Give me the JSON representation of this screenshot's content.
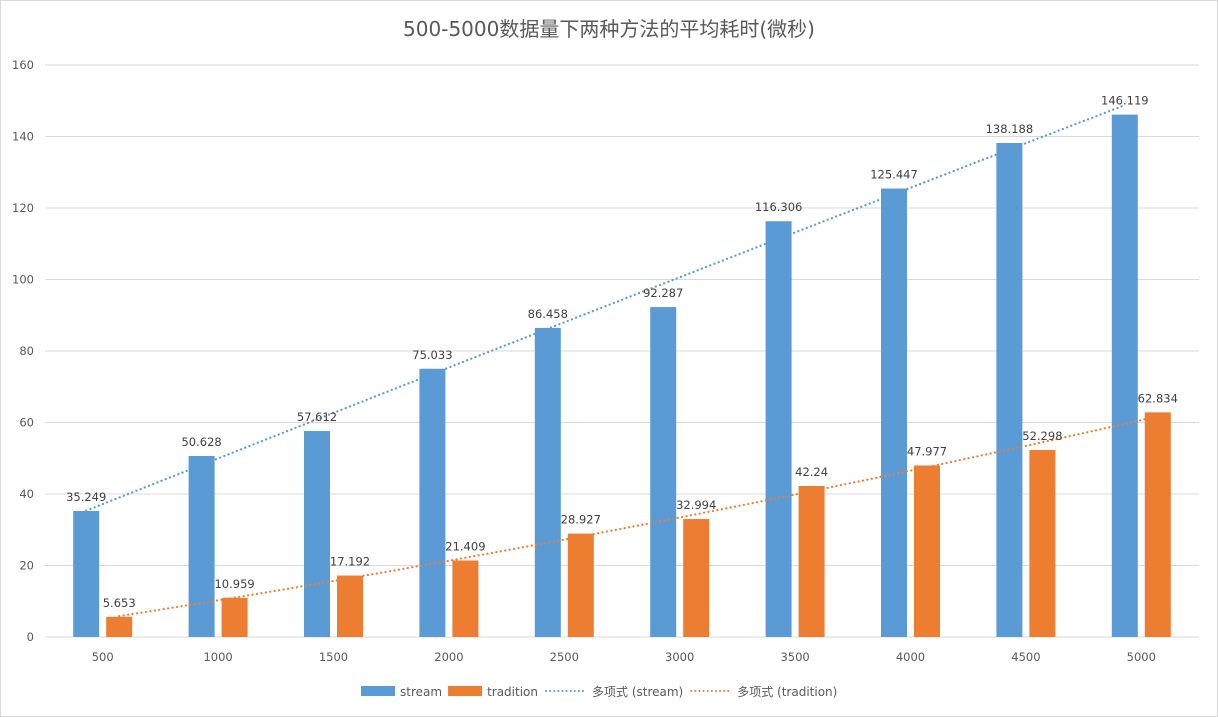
{
  "chart_data": {
    "type": "bar",
    "title": "500-5000数据量下两种方法的平均耗时(微秒)",
    "xlabel": "",
    "ylabel": "",
    "categories": [
      "500",
      "1000",
      "1500",
      "2000",
      "2500",
      "3000",
      "3500",
      "4000",
      "4500",
      "5000"
    ],
    "series": [
      {
        "name": "stream",
        "color": "#5B9BD5",
        "values": [
          35.249,
          50.628,
          57.612,
          75.033,
          86.458,
          92.287,
          116.306,
          125.447,
          138.188,
          146.119
        ],
        "labels": [
          "35.249",
          "50.628",
          "57.612",
          "75.033",
          "86.458",
          "92.287",
          "116.306",
          "125.447",
          "138.188",
          "146.119"
        ]
      },
      {
        "name": "tradition",
        "color": "#ED7D31",
        "values": [
          5.653,
          10.959,
          17.192,
          21.409,
          28.927,
          32.994,
          42.24,
          47.977,
          52.298,
          62.834
        ],
        "labels": [
          "5.653",
          "10.959",
          "17.192",
          "21.409",
          "28.927",
          "32.994",
          "42.24",
          "47.977",
          "52.298",
          "62.834"
        ]
      }
    ],
    "trendlines": [
      {
        "name": "多项式 (stream)",
        "series": "stream",
        "kind": "polynomial",
        "order": 2,
        "color": "#5B9BD5",
        "style": "dotted"
      },
      {
        "name": "多项式 (tradition)",
        "series": "tradition",
        "kind": "polynomial",
        "order": 2,
        "color": "#ED7D31",
        "style": "dotted"
      }
    ],
    "ylim": [
      0,
      160
    ],
    "yticks": [
      "0",
      "20",
      "40",
      "60",
      "80",
      "100",
      "120",
      "140",
      "160"
    ],
    "ytick_values": [
      0,
      20,
      40,
      60,
      80,
      100,
      120,
      140,
      160
    ],
    "grid": true,
    "legend": {
      "position": "bottom",
      "entries": [
        "stream",
        "tradition",
        "多项式 (stream)",
        "多项式 (tradition)"
      ]
    }
  }
}
